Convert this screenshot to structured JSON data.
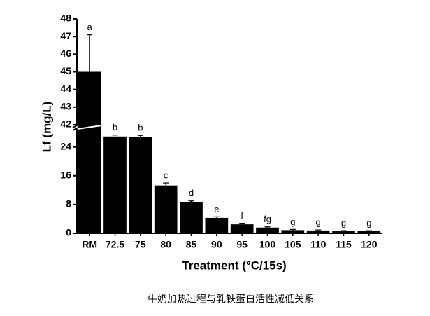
{
  "chart_data": {
    "type": "bar",
    "y_label": "Lf (mg/L)",
    "x_label": "Treatment (°C/15s)",
    "caption": "牛奶加热过程与乳铁蛋白活性减低关系",
    "categories": [
      "RM",
      "72.5",
      "75",
      "80",
      "85",
      "90",
      "95",
      "100",
      "105",
      "110",
      "115",
      "120"
    ],
    "values": [
      45,
      26.9,
      26.8,
      13.3,
      8.6,
      4.3,
      2.5,
      1.6,
      0.9,
      0.8,
      0.6,
      0.6
    ],
    "errors": [
      2.1,
      0.4,
      0.4,
      0.7,
      0.4,
      0.3,
      0.3,
      0.2,
      0.2,
      0.15,
      0.15,
      0.15
    ],
    "letters": [
      "a",
      "b",
      "b",
      "c",
      "d",
      "e",
      "f",
      "fg",
      "g",
      "g",
      "g",
      "g"
    ],
    "color": "#000000",
    "ylim": [
      0,
      48
    ],
    "ybreak": [
      29,
      42
    ],
    "yticks": [
      0,
      8,
      16,
      24,
      42,
      43,
      44,
      45,
      46,
      47,
      48
    ]
  }
}
